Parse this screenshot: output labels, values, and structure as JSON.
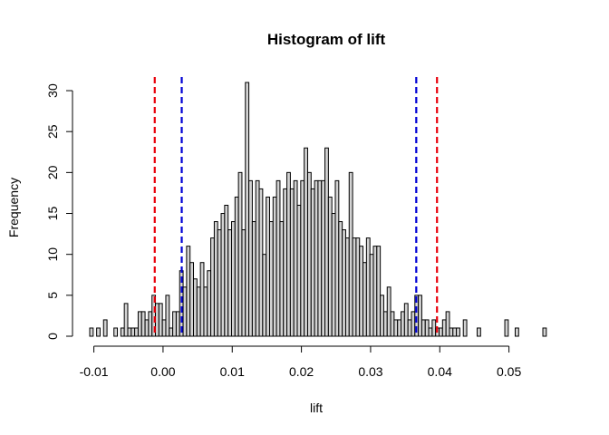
{
  "chart_data": {
    "type": "bar",
    "title": "Histogram of lift",
    "xlabel": "lift",
    "ylabel": "Frequency",
    "xlim": [
      -0.0106,
      0.0566
    ],
    "ylim": [
      0,
      31
    ],
    "x_ticks": [
      {
        "value": -0.01,
        "label": "-0.01"
      },
      {
        "value": 0.0,
        "label": "0.00"
      },
      {
        "value": 0.01,
        "label": "0.01"
      },
      {
        "value": 0.02,
        "label": "0.02"
      },
      {
        "value": 0.03,
        "label": "0.03"
      },
      {
        "value": 0.04,
        "label": "0.04"
      },
      {
        "value": 0.05,
        "label": "0.05"
      }
    ],
    "y_ticks": [
      {
        "value": 0,
        "label": "0"
      },
      {
        "value": 5,
        "label": "5"
      },
      {
        "value": 10,
        "label": "10"
      },
      {
        "value": 15,
        "label": "15"
      },
      {
        "value": 20,
        "label": "20"
      },
      {
        "value": 25,
        "label": "25"
      },
      {
        "value": 30,
        "label": "30"
      }
    ],
    "bin_start": -0.0106,
    "bin_width": 0.0005,
    "counts": [
      1,
      0,
      1,
      0,
      2,
      0,
      0,
      1,
      0,
      1,
      4,
      1,
      1,
      1,
      3,
      3,
      2,
      3,
      5,
      4,
      4,
      2,
      5,
      1,
      3,
      3,
      8,
      6,
      11,
      9,
      7,
      6,
      9,
      6,
      8,
      12,
      14,
      13,
      15,
      16,
      13,
      14,
      17,
      20,
      13,
      31,
      19,
      14,
      19,
      18,
      10,
      17,
      14,
      17,
      19,
      14,
      18,
      20,
      18,
      19,
      16,
      19,
      23,
      20,
      18,
      19,
      19,
      19,
      23,
      17,
      15,
      19,
      14,
      13,
      12,
      20,
      12,
      12,
      11,
      9,
      12,
      10,
      11,
      11,
      5,
      3,
      6,
      3,
      2,
      2,
      3,
      4,
      2,
      3,
      5,
      5,
      2,
      2,
      1,
      2,
      1,
      1,
      2,
      3,
      1,
      1,
      1,
      0,
      2,
      0,
      0,
      0,
      1,
      0,
      0,
      0,
      0,
      0,
      0,
      0,
      2,
      0,
      0,
      1,
      0,
      0,
      0,
      0,
      0,
      0,
      0,
      1
    ],
    "vlines": [
      {
        "x": -0.0012,
        "color": "#e8000b",
        "style": "dashed"
      },
      {
        "x": 0.0027,
        "color": "#0000d4",
        "style": "dashed"
      },
      {
        "x": 0.0366,
        "color": "#0000d4",
        "style": "dashed"
      },
      {
        "x": 0.0396,
        "color": "#e8000b",
        "style": "dashed"
      }
    ],
    "bar_fill": "#d3d3d3",
    "bar_stroke": "#000000",
    "grid": false
  }
}
